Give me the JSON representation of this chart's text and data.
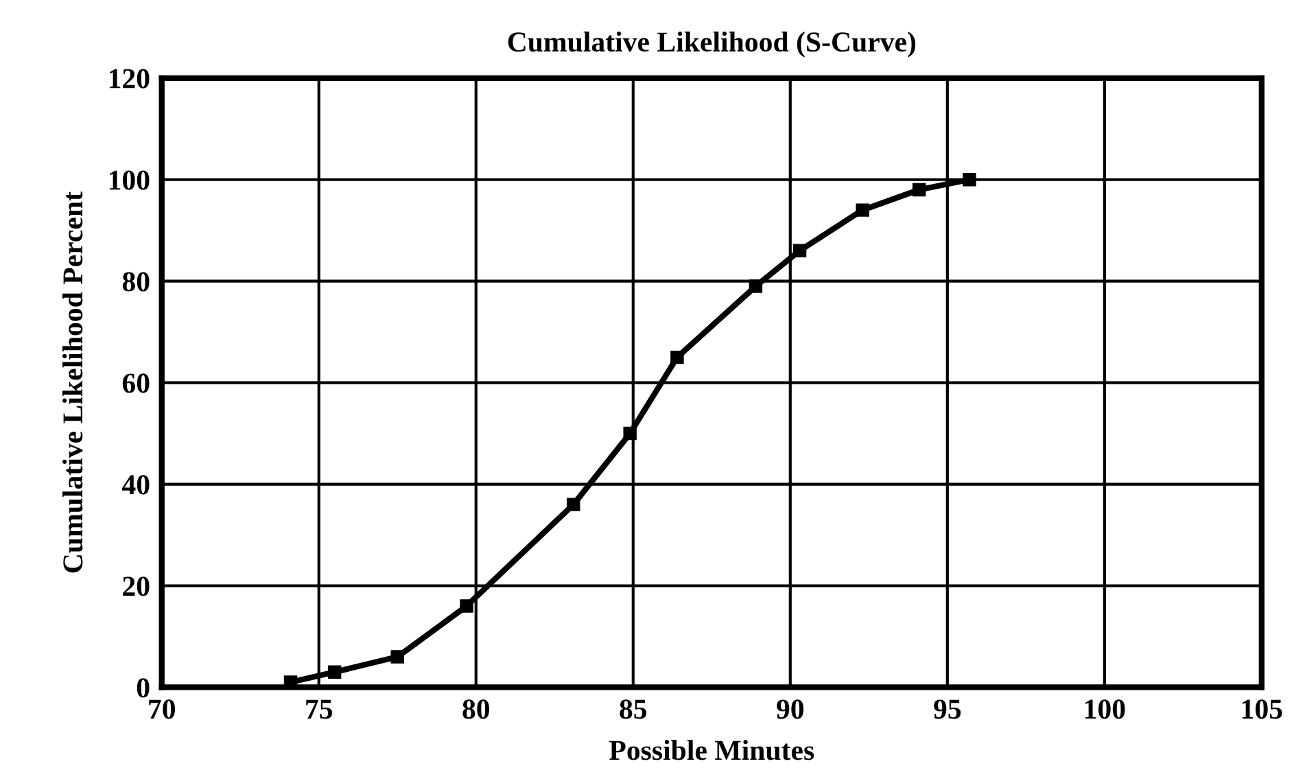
{
  "chart_data": {
    "type": "line",
    "title": "Cumulative Likelihood (S-Curve)",
    "xlabel": "Possible Minutes",
    "ylabel": "Cumulative Likelihood Percent",
    "series": [
      {
        "color": "#000000",
        "x": [
          74.1,
          75.5,
          77.5,
          79.7,
          83.1,
          84.9,
          86.4,
          88.9,
          90.3,
          92.3,
          94.1,
          95.7
        ],
        "values": [
          1,
          3,
          6,
          16,
          36,
          50,
          65,
          79,
          86,
          94,
          98,
          100
        ]
      }
    ],
    "xlim": [
      70,
      105
    ],
    "xticks": [
      70,
      75,
      80,
      85,
      90,
      95,
      100,
      105
    ],
    "ylim": [
      0,
      120
    ],
    "yticks": [
      0,
      20,
      40,
      60,
      80,
      100,
      120
    ],
    "grid": true,
    "marker": "square",
    "line_style": "solid"
  }
}
